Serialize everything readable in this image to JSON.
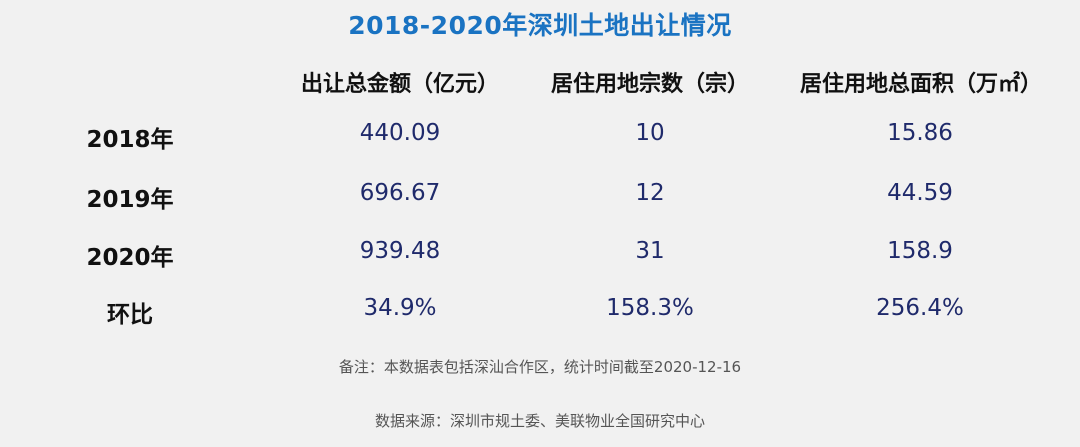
{
  "title": "2018-2020年深圳土地出让情况",
  "columns": [
    "出让总金额（亿元）",
    "居住用地宗数（宗）",
    "居住用地总面积（万㎡）"
  ],
  "rows": [
    {
      "label": "2018年",
      "values": [
        "440.09",
        "10",
        "15.86"
      ]
    },
    {
      "label": "2019年",
      "values": [
        "696.67",
        "12",
        "44.59"
      ]
    },
    {
      "label": "2020年",
      "values": [
        "939.48",
        "31",
        "158.9"
      ]
    },
    {
      "label": "环比",
      "values": [
        "34.9%",
        "158.3%",
        "256.4%"
      ]
    }
  ],
  "note": "备注：本数据表包括深汕合作区，统计时间截至2020-12-16",
  "source": "数据来源：深圳市规土委、美联物业全国研究中心",
  "colors": {
    "title": "#1a73c2",
    "value": "#1f2a6b",
    "background": "#f1f1f1"
  },
  "chart_data": {
    "type": "table",
    "title": "2018-2020年深圳土地出让情况",
    "columns": [
      "出让总金额（亿元）",
      "居住用地宗数（宗）",
      "居住用地总面积（万㎡）"
    ],
    "rows": [
      "2018年",
      "2019年",
      "2020年",
      "环比"
    ],
    "series": [
      {
        "name": "出让总金额（亿元）",
        "values": [
          440.09,
          696.67,
          939.48
        ]
      },
      {
        "name": "居住用地宗数（宗）",
        "values": [
          10,
          12,
          31
        ]
      },
      {
        "name": "居住用地总面积（万㎡）",
        "values": [
          15.86,
          44.59,
          158.9
        ]
      }
    ],
    "growth": [
      "34.9%",
      "158.3%",
      "256.4%"
    ]
  }
}
